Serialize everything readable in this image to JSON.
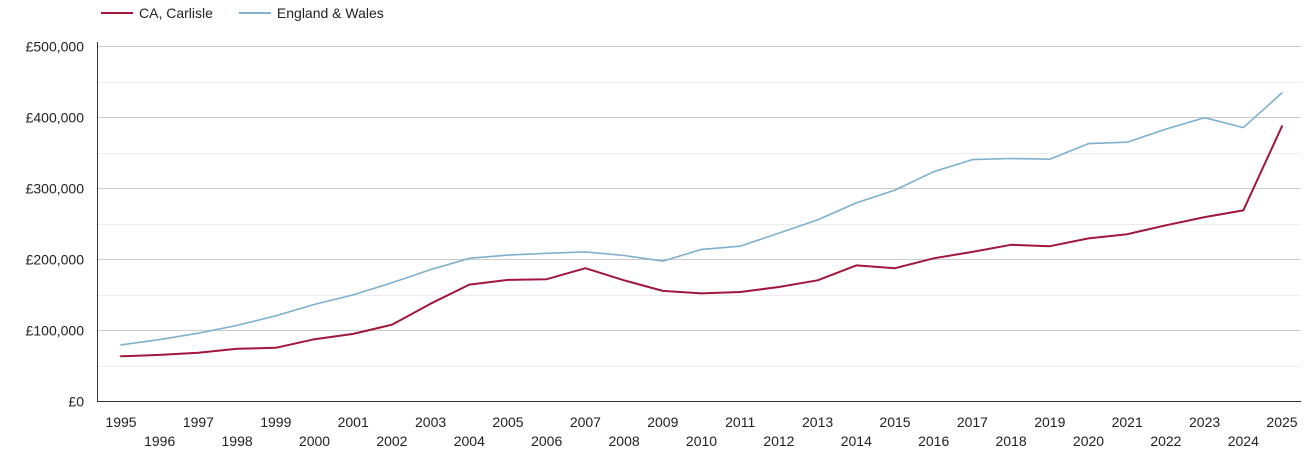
{
  "chart_data": {
    "type": "line",
    "title": "",
    "xlabel": "",
    "ylabel": "",
    "x": [
      1995,
      1996,
      1997,
      1998,
      1999,
      2000,
      2001,
      2002,
      2003,
      2004,
      2005,
      2006,
      2007,
      2008,
      2009,
      2010,
      2011,
      2012,
      2013,
      2014,
      2015,
      2016,
      2017,
      2018,
      2019,
      2020,
      2021,
      2022,
      2023,
      2024,
      2025
    ],
    "xlim": [
      1995,
      2025
    ],
    "ylim": [
      0,
      500000
    ],
    "y_ticks": [
      0,
      100000,
      200000,
      300000,
      400000,
      500000
    ],
    "y_tick_labels": [
      "£0",
      "£100,000",
      "£200,000",
      "£300,000",
      "£400,000",
      "£500,000"
    ],
    "grid": true,
    "legend_position": "top-left",
    "series": [
      {
        "name": "CA, Carlisle",
        "color": "#a0173a",
        "values": [
          63000,
          65000,
          68000,
          73500,
          75000,
          87000,
          94500,
          107500,
          137000,
          164000,
          170500,
          171500,
          187000,
          170000,
          155000,
          151500,
          153500,
          160500,
          170000,
          191000,
          187000,
          201000,
          210000,
          220000,
          218000,
          229000,
          235000,
          247500,
          259000,
          268500,
          387000
        ]
      },
      {
        "name": "England & Wales",
        "color": "#7fb1cd",
        "values": [
          79000,
          86500,
          95500,
          106500,
          120000,
          136000,
          149500,
          166500,
          185000,
          201000,
          205500,
          208000,
          210000,
          205000,
          197000,
          213500,
          218000,
          236500,
          255000,
          279000,
          297000,
          323000,
          340000,
          341500,
          340500,
          362500,
          364500,
          383000,
          399000,
          385000,
          434000
        ]
      }
    ]
  }
}
